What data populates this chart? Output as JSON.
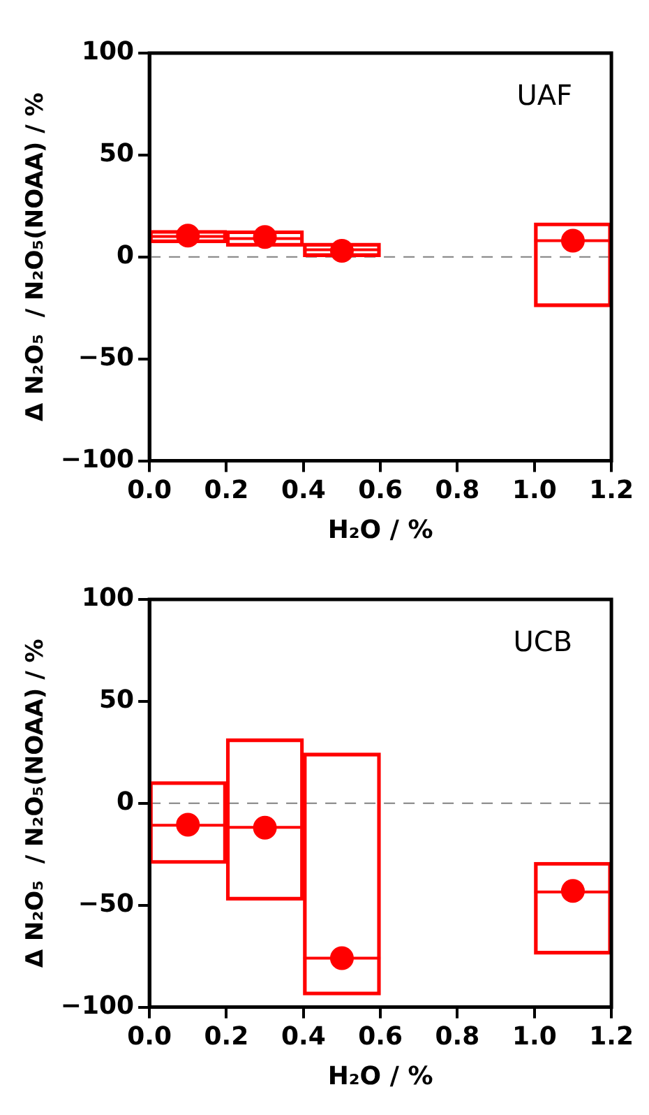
{
  "chart_data": [
    {
      "type": "box",
      "xlabel": "H₂O / %",
      "ylabel": "Δ N₂O₅  / N₂O₅(NOAA) / %",
      "annotations": [
        "UAF"
      ],
      "x": [
        0.1,
        0.3,
        0.5,
        1.1
      ],
      "color": "#ff0000",
      "boxes": [
        {
          "low": 7,
          "q1": 7,
          "median": 10,
          "q3": 13,
          "high": 13,
          "mean": 10.5
        },
        {
          "low": 5.3,
          "q1": 5.3,
          "median": 9,
          "q3": 12.8,
          "high": 12.8,
          "mean": 9.8
        },
        {
          "low": 0.2,
          "q1": 0.2,
          "median": 3.5,
          "q3": 6.7,
          "high": 6.7,
          "mean": 3
        },
        {
          "low": -24.4,
          "q1": -24.4,
          "median": 8,
          "q3": 16.7,
          "high": 16.7,
          "mean": 8
        }
      ],
      "xlim": [
        0,
        1.2
      ],
      "xticks": [
        {
          "value": 0,
          "label": "0.0"
        },
        {
          "value": 0.2,
          "label": "0.2"
        },
        {
          "value": 0.4,
          "label": "0.4"
        },
        {
          "value": 0.6,
          "label": "0.6"
        },
        {
          "value": 0.8,
          "label": "0.8"
        },
        {
          "value": 1,
          "label": "1.0"
        },
        {
          "value": 1.2,
          "label": "1.2"
        }
      ],
      "ylim": [
        -100,
        100
      ],
      "yticks": [
        -100,
        -50,
        0,
        50,
        100
      ],
      "ref_lines": [
        {
          "axis": "y",
          "value": 0,
          "color": "#808080",
          "line_style": "dashed"
        }
      ],
      "grid": false,
      "legend": false,
      "marker": "circle"
    },
    {
      "type": "box",
      "xlabel": "H₂O / %",
      "ylabel": "Δ N₂O₅  / N₂O₅(NOAA) / %",
      "annotations": [
        "UCB"
      ],
      "x": [
        0.1,
        0.3,
        0.5,
        1.1
      ],
      "color": "#ff0000",
      "boxes": [
        {
          "low": -29.5,
          "q1": -29.5,
          "median": -10.8,
          "q3": 10.6,
          "high": 10.6,
          "mean": -10.5
        },
        {
          "low": -47.5,
          "q1": -47.5,
          "median": -11.8,
          "q3": 31.6,
          "high": 31.6,
          "mean": -12
        },
        {
          "low": -94,
          "q1": -94,
          "median": -76,
          "q3": 24.6,
          "high": 24.6,
          "mean": -76
        },
        {
          "low": -74,
          "q1": -74,
          "median": -43.5,
          "q3": -29,
          "high": -29,
          "mean": -43
        }
      ],
      "xlim": [
        0,
        1.2
      ],
      "xticks": [
        {
          "value": 0,
          "label": "0.0"
        },
        {
          "value": 0.2,
          "label": "0.2"
        },
        {
          "value": 0.4,
          "label": "0.4"
        },
        {
          "value": 0.6,
          "label": "0.6"
        },
        {
          "value": 0.8,
          "label": "0.8"
        },
        {
          "value": 1,
          "label": "1.0"
        },
        {
          "value": 1.2,
          "label": "1.2"
        }
      ],
      "ylim": [
        -100,
        100
      ],
      "yticks": [
        -100,
        -50,
        0,
        50,
        100
      ],
      "ref_lines": [
        {
          "axis": "y",
          "value": 0,
          "color": "#808080",
          "line_style": "dashed"
        }
      ],
      "grid": false,
      "legend": false,
      "marker": "circle"
    }
  ]
}
